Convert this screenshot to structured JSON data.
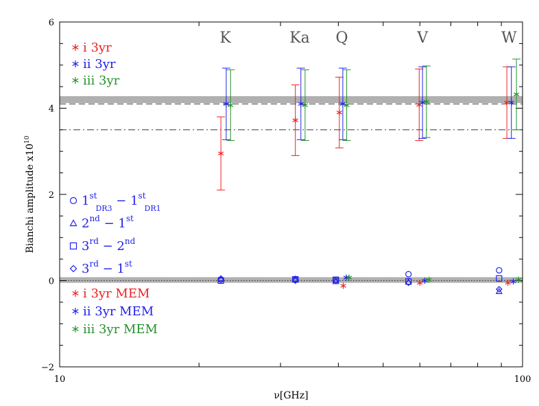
{
  "chart_data": {
    "type": "scatter",
    "xlabel": "ν[GHz]",
    "ylabel": "Bianchi amplitude x10",
    "ylabel_sup": "10",
    "xscale": "log",
    "xlim": [
      10,
      100
    ],
    "ylim": [
      -2,
      6
    ],
    "x_ticks": [
      {
        "value": 10,
        "label": "10"
      },
      {
        "value": 100,
        "label": "100"
      }
    ],
    "y_ticks": [
      -2,
      0,
      2,
      4,
      6
    ],
    "y_tick_labels": [
      "−2",
      "0",
      "2",
      "4",
      "6"
    ],
    "bands": [
      {
        "label": "K",
        "x": 22.8
      },
      {
        "label": "Ka",
        "x": 33.0
      },
      {
        "label": "Q",
        "x": 40.7
      },
      {
        "label": "V",
        "x": 60.8
      },
      {
        "label": "W",
        "x": 93.5
      }
    ],
    "reference_lines": [
      {
        "style": "shaded",
        "y_min": 4.12,
        "y_max": 4.28,
        "color": "#b0b0b0"
      },
      {
        "style": "dashed",
        "y": 4.1
      },
      {
        "style": "dashdot",
        "y": 3.5
      },
      {
        "style": "shaded",
        "y_min": -0.05,
        "y_max": 0.08,
        "color": "#b0b0b0"
      },
      {
        "style": "dotted",
        "y": 0.0
      }
    ],
    "series": [
      {
        "name": "i 3yr",
        "color": "#ee2020",
        "marker": "asterisk",
        "points": [
          {
            "x": 22.3,
            "y": 2.95,
            "yerr": 0.85
          },
          {
            "x": 32.3,
            "y": 3.72,
            "yerr": 0.82
          },
          {
            "x": 40.2,
            "y": 3.9,
            "yerr": 0.82
          },
          {
            "x": 59.8,
            "y": 4.08,
            "yerr": 0.83
          },
          {
            "x": 92.5,
            "y": 4.13,
            "yerr": 0.83
          }
        ]
      },
      {
        "name": "ii 3yr",
        "color": "#2020ee",
        "marker": "asterisk",
        "points": [
          {
            "x": 22.9,
            "y": 4.1,
            "yerr": 0.83
          },
          {
            "x": 33.2,
            "y": 4.1,
            "yerr": 0.83
          },
          {
            "x": 40.9,
            "y": 4.1,
            "yerr": 0.83
          },
          {
            "x": 60.8,
            "y": 4.13,
            "yerr": 0.83
          },
          {
            "x": 94.6,
            "y": 4.13,
            "yerr": 0.83
          }
        ]
      },
      {
        "name": "iii 3yr",
        "color": "#22922a",
        "marker": "asterisk",
        "points": [
          {
            "x": 23.4,
            "y": 4.07,
            "yerr": 0.82
          },
          {
            "x": 33.9,
            "y": 4.07,
            "yerr": 0.82
          },
          {
            "x": 41.7,
            "y": 4.07,
            "yerr": 0.82
          },
          {
            "x": 62.0,
            "y": 4.15,
            "yerr": 0.83
          },
          {
            "x": 97.0,
            "y": 4.32,
            "yerr": 0.82
          }
        ]
      },
      {
        "name": "1st_DR3 − 1st_DR1",
        "color": "#2020ee",
        "marker": "circle",
        "points": [
          {
            "x": 22.3,
            "y": 0.03
          },
          {
            "x": 32.3,
            "y": 0.03
          },
          {
            "x": 39.5,
            "y": 0.02
          },
          {
            "x": 56.7,
            "y": 0.15
          },
          {
            "x": 89.0,
            "y": 0.24
          }
        ]
      },
      {
        "name": "2nd − 1st",
        "color": "#2020ee",
        "marker": "triangle",
        "points": [
          {
            "x": 22.3,
            "y": 0.05
          },
          {
            "x": 32.3,
            "y": 0.04
          },
          {
            "x": 39.5,
            "y": -0.02
          },
          {
            "x": 56.7,
            "y": -0.03
          },
          {
            "x": 89.0,
            "y": -0.25
          }
        ]
      },
      {
        "name": "3rd − 2nd",
        "color": "#2020ee",
        "marker": "square",
        "points": [
          {
            "x": 22.3,
            "y": 0.0
          },
          {
            "x": 32.3,
            "y": 0.03
          },
          {
            "x": 39.5,
            "y": 0.02
          },
          {
            "x": 56.7,
            "y": -0.02
          },
          {
            "x": 89.0,
            "y": 0.05
          }
        ]
      },
      {
        "name": "3rd − 1st",
        "color": "#2020ee",
        "marker": "diamond",
        "points": [
          {
            "x": 22.3,
            "y": 0.02
          },
          {
            "x": 32.3,
            "y": 0.0
          },
          {
            "x": 39.5,
            "y": 0.0
          },
          {
            "x": 56.7,
            "y": -0.05
          },
          {
            "x": 89.0,
            "y": -0.2
          }
        ]
      },
      {
        "name": "i 3yr MEM",
        "color": "#ee2020",
        "marker": "asterisk",
        "points": [
          {
            "x": 41.0,
            "y": -0.12
          },
          {
            "x": 60.0,
            "y": -0.05
          },
          {
            "x": 93.0,
            "y": -0.05
          }
        ]
      },
      {
        "name": "ii 3yr MEM",
        "color": "#2020ee",
        "marker": "asterisk",
        "points": [
          {
            "x": 41.6,
            "y": 0.07
          },
          {
            "x": 61.5,
            "y": 0.0
          },
          {
            "x": 95.5,
            "y": -0.02
          }
        ]
      },
      {
        "name": "iii 3yr MEM",
        "color": "#22922a",
        "marker": "asterisk",
        "points": [
          {
            "x": 42.2,
            "y": 0.07
          },
          {
            "x": 62.8,
            "y": 0.02
          },
          {
            "x": 98.0,
            "y": 0.02
          }
        ]
      }
    ],
    "legend_top": [
      {
        "prefix": "i",
        "text": "3yr",
        "color": "#ee2020",
        "marker": "asterisk"
      },
      {
        "prefix": "ii",
        "text": "3yr",
        "color": "#2020ee",
        "marker": "asterisk"
      },
      {
        "prefix": "iii",
        "text": "3yr",
        "color": "#22922a",
        "marker": "asterisk"
      }
    ],
    "legend_mid": [
      {
        "marker": "circle",
        "base1": "1",
        "sup1": "st",
        "sub1": "DR3",
        "op": "−",
        "base2": "1",
        "sup2": "st",
        "sub2": "DR1"
      },
      {
        "marker": "triangle",
        "base1": "2",
        "sup1": "nd",
        "sub1": "",
        "op": "−",
        "base2": "1",
        "sup2": "st",
        "sub2": ""
      },
      {
        "marker": "square",
        "base1": "3",
        "sup1": "rd",
        "sub1": "",
        "op": "−",
        "base2": "2",
        "sup2": "nd",
        "sub2": ""
      },
      {
        "marker": "diamond",
        "base1": "3",
        "sup1": "rd",
        "sub1": "",
        "op": "−",
        "base2": "1",
        "sup2": "st",
        "sub2": ""
      }
    ],
    "legend_mid_color": "#2020ee",
    "legend_bottom": [
      {
        "prefix": "i",
        "text": "3yr MEM",
        "color": "#ee2020",
        "marker": "asterisk"
      },
      {
        "prefix": "ii",
        "text": "3yr MEM",
        "color": "#2020ee",
        "marker": "asterisk"
      },
      {
        "prefix": "iii",
        "text": "3yr MEM",
        "color": "#22922a",
        "marker": "asterisk"
      }
    ]
  }
}
